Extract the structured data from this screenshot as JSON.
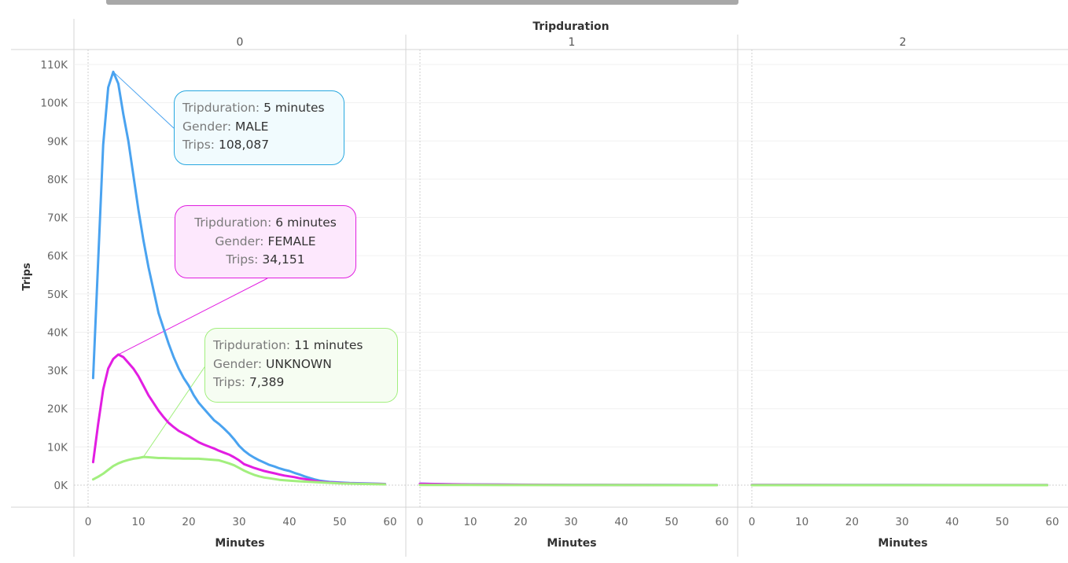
{
  "chart_data": {
    "type": "line",
    "column_field": "Tripduration",
    "panels": [
      "0",
      "1",
      "2"
    ],
    "xlabel": "Minutes",
    "ylabel": "Trips",
    "xlim": [
      0,
      60
    ],
    "ylim": [
      0,
      110000
    ],
    "xticks": [
      0,
      10,
      20,
      30,
      40,
      50,
      60
    ],
    "yticks": [
      {
        "value": 0,
        "label": "0K"
      },
      {
        "value": 10000,
        "label": "10K"
      },
      {
        "value": 20000,
        "label": "20K"
      },
      {
        "value": 30000,
        "label": "30K"
      },
      {
        "value": 40000,
        "label": "40K"
      },
      {
        "value": 50000,
        "label": "50K"
      },
      {
        "value": 60000,
        "label": "60K"
      },
      {
        "value": 70000,
        "label": "70K"
      },
      {
        "value": 80000,
        "label": "80K"
      },
      {
        "value": 90000,
        "label": "90K"
      },
      {
        "value": 100000,
        "label": "100K"
      },
      {
        "value": 110000,
        "label": "110K"
      }
    ],
    "series": [
      {
        "gender": "MALE",
        "color": "#4aa3f0",
        "panels": [
          {
            "x": [
              1,
              3,
              4,
              5,
              6,
              7,
              8,
              9,
              10,
              11,
              12,
              13,
              14,
              15,
              16,
              17,
              18,
              19,
              20,
              21,
              22,
              23,
              24,
              25,
              26,
              27,
              28,
              29,
              30,
              31,
              32,
              33,
              34,
              35,
              36,
              37,
              38,
              39,
              40,
              41,
              42,
              43,
              44,
              45,
              46,
              47,
              48,
              50,
              52,
              55,
              58,
              59
            ],
            "y": [
              28000,
              89000,
              104000,
              108087,
              105000,
              97000,
              90000,
              81000,
              72000,
              64000,
              57000,
              51000,
              45000,
              41000,
              37000,
              33500,
              30500,
              28000,
              26000,
              23500,
              21500,
              20000,
              18500,
              17000,
              16000,
              14800,
              13500,
              12000,
              10300,
              9000,
              8000,
              7200,
              6500,
              5900,
              5300,
              4900,
              4400,
              4000,
              3700,
              3200,
              2800,
              2300,
              1900,
              1500,
              1200,
              1000,
              850,
              700,
              550,
              450,
              350,
              300
            ]
          },
          {
            "x": [
              0,
              5,
              10,
              20,
              30,
              40,
              50,
              59
            ],
            "y": [
              400,
              250,
              180,
              120,
              80,
              60,
              40,
              30
            ]
          },
          {
            "x": [
              0,
              10,
              20,
              30,
              40,
              50,
              59
            ],
            "y": [
              60,
              50,
              40,
              35,
              30,
              25,
              20
            ]
          }
        ]
      },
      {
        "gender": "FEMALE",
        "color": "#e21ee2",
        "panels": [
          {
            "x": [
              1,
              2,
              3,
              4,
              5,
              6,
              7,
              8,
              9,
              10,
              11,
              12,
              13,
              14,
              15,
              16,
              17,
              18,
              19,
              20,
              21,
              22,
              23,
              24,
              25,
              26,
              27,
              28,
              29,
              30,
              31,
              32,
              33,
              34,
              35,
              36,
              37,
              38,
              39,
              40,
              41,
              42,
              43,
              44,
              45,
              46,
              48,
              50,
              52,
              55,
              58,
              59
            ],
            "y": [
              6000,
              16000,
              25000,
              30500,
              33000,
              34151,
              33500,
              32000,
              30500,
              28500,
              26000,
              23500,
              21500,
              19500,
              17800,
              16300,
              15200,
              14200,
              13500,
              12800,
              12000,
              11200,
              10600,
              10100,
              9600,
              9000,
              8500,
              8000,
              7300,
              6500,
              5500,
              5000,
              4500,
              4100,
              3700,
              3400,
              3100,
              2800,
              2500,
              2300,
              2100,
              1800,
              1600,
              1400,
              1100,
              900,
              700,
              550,
              450,
              350,
              300,
              250
            ]
          },
          {
            "x": [
              0,
              5,
              10,
              20,
              30,
              40,
              50,
              59
            ],
            "y": [
              350,
              220,
              160,
              100,
              70,
              50,
              30,
              20
            ]
          },
          {
            "x": [
              0,
              10,
              20,
              30,
              40,
              50,
              59
            ],
            "y": [
              40,
              35,
              30,
              25,
              20,
              18,
              15
            ]
          }
        ]
      },
      {
        "gender": "UNKNOWN",
        "color": "#a2ef7e",
        "panels": [
          {
            "x": [
              1,
              2,
              3,
              4,
              5,
              6,
              7,
              8,
              9,
              10,
              11,
              12,
              13,
              14,
              15,
              16,
              17,
              18,
              19,
              20,
              21,
              22,
              23,
              24,
              25,
              26,
              27,
              28,
              29,
              30,
              31,
              32,
              33,
              34,
              35,
              36,
              37,
              38,
              40,
              42,
              45,
              48,
              50,
              55,
              59
            ],
            "y": [
              1500,
              2200,
              3000,
              4000,
              5000,
              5700,
              6200,
              6600,
              6900,
              7100,
              7389,
              7300,
              7200,
              7100,
              7100,
              7050,
              7000,
              7000,
              6950,
              6950,
              6900,
              6900,
              6800,
              6700,
              6600,
              6500,
              6100,
              5700,
              5200,
              4500,
              3800,
              3200,
              2700,
              2300,
              2000,
              1800,
              1600,
              1400,
              1200,
              1000,
              800,
              600,
              450,
              300,
              200
            ]
          },
          {
            "x": [
              0,
              10,
              20,
              30,
              40,
              50,
              59
            ],
            "y": [
              60,
              40,
              30,
              20,
              15,
              10,
              8
            ]
          },
          {
            "x": [
              0,
              10,
              20,
              30,
              40,
              50,
              59
            ],
            "y": [
              10,
              8,
              6,
              5,
              4,
              3,
              2
            ]
          }
        ]
      }
    ],
    "annotations": [
      {
        "gender": "MALE",
        "point_x": 5,
        "point_y": 108087,
        "lines": [
          {
            "label": "Tripduration:",
            "value": "5 minutes"
          },
          {
            "label": "Gender:",
            "value": "MALE"
          },
          {
            "label": "Trips:",
            "value": "108,087"
          }
        ]
      },
      {
        "gender": "FEMALE",
        "point_x": 6,
        "point_y": 34151,
        "lines": [
          {
            "label": "Tripduration:",
            "value": "6 minutes"
          },
          {
            "label": "Gender:",
            "value": "FEMALE"
          },
          {
            "label": "Trips:",
            "value": "34,151"
          }
        ]
      },
      {
        "gender": "UNKNOWN",
        "point_x": 11,
        "point_y": 7389,
        "lines": [
          {
            "label": "Tripduration:",
            "value": "11 minutes"
          },
          {
            "label": "Gender:",
            "value": "UNKNOWN"
          },
          {
            "label": "Trips:",
            "value": "7,389"
          }
        ]
      }
    ]
  }
}
